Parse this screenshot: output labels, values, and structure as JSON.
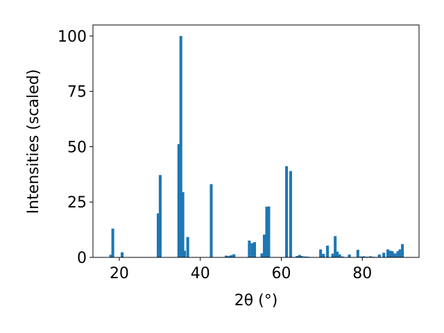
{
  "chart_data": {
    "type": "bar",
    "xlabel": "2θ (°)",
    "ylabel": "Intensities (scaled)",
    "xlim": [
      13.5,
      94.0
    ],
    "ylim": [
      0,
      105
    ],
    "xticks": [
      20,
      40,
      60,
      80
    ],
    "yticks": [
      0,
      25,
      50,
      75,
      100
    ],
    "bar_width": 0.7,
    "color": "#1f77b4",
    "grid": false,
    "legend": "none",
    "x": [
      17.9,
      18.4,
      20.7,
      29.6,
      30.1,
      34.7,
      35.2,
      35.7,
      36.1,
      36.9,
      42.7,
      46.4,
      47.0,
      47.6,
      48.3,
      52.1,
      52.8,
      53.4,
      55.2,
      55.8,
      56.4,
      56.9,
      61.3,
      62.3,
      63.9,
      64.5,
      65.1,
      65.9,
      66.6,
      69.7,
      70.4,
      71.4,
      72.7,
      73.3,
      73.8,
      74.4,
      75.1,
      76.8,
      78.9,
      79.7,
      80.4,
      81.2,
      82.0,
      82.6,
      83.4,
      84.2,
      85.3,
      86.3,
      86.9,
      87.4,
      88.1,
      88.8,
      89.3,
      89.9
    ],
    "values": [
      1.2,
      13.0,
      2.3,
      19.9,
      37.2,
      51.2,
      100.0,
      29.5,
      3.0,
      9.2,
      33.1,
      0.8,
      0.6,
      1.0,
      1.4,
      7.6,
      6.4,
      6.9,
      1.8,
      10.3,
      22.9,
      23.0,
      41.2,
      39.0,
      0.6,
      1.1,
      0.6,
      0.4,
      0.3,
      3.6,
      1.6,
      5.3,
      1.7,
      9.6,
      2.6,
      1.4,
      0.4,
      1.3,
      3.4,
      0.4,
      0.5,
      0.3,
      0.5,
      0.3,
      0.2,
      1.3,
      2.1,
      3.6,
      3.0,
      2.8,
      1.8,
      2.8,
      3.6,
      6.0
    ]
  }
}
